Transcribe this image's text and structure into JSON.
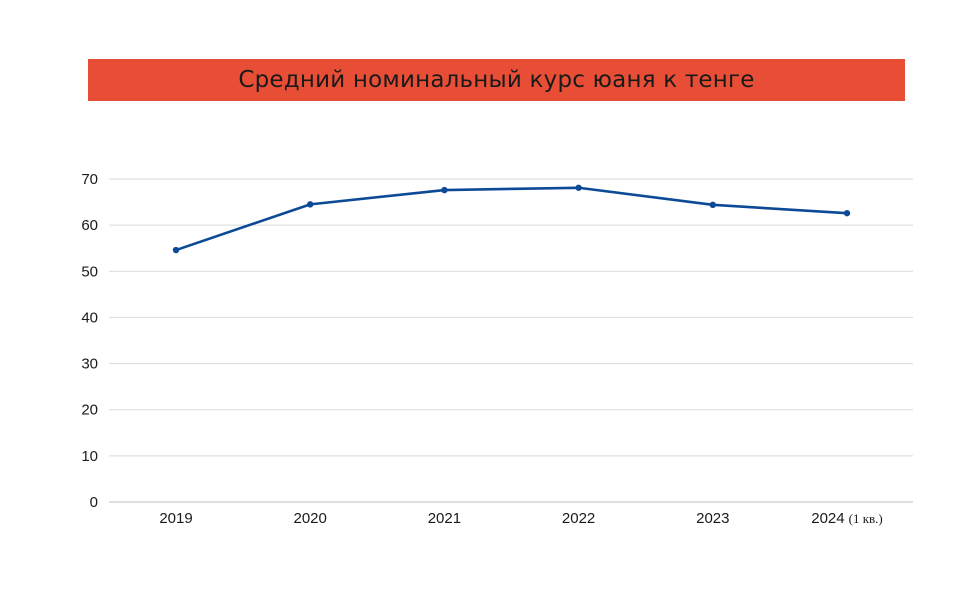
{
  "chart_data": {
    "type": "line",
    "title": "Средний номинальный курс юаня к тенге",
    "xlabel": "",
    "ylabel": "",
    "categories": [
      "2019",
      "2020",
      "2021",
      "2022",
      "2023",
      "2024"
    ],
    "category_suffix": {
      "2024": "(1 кв.)"
    },
    "series": [
      {
        "values": [
          54.6,
          64.5,
          67.6,
          68.1,
          64.4,
          62.6
        ],
        "color": "#0d4a96"
      }
    ],
    "ylim": [
      0,
      70
    ],
    "yticks": [
      "0",
      "10",
      "20",
      "30",
      "40",
      "50",
      "60",
      "70"
    ],
    "grid": true,
    "legend": "none"
  },
  "colors": {
    "banner": "#e84e35",
    "line": "#0d4a96",
    "grid": "#d9d9d9",
    "axis": "#bfbfbf"
  }
}
